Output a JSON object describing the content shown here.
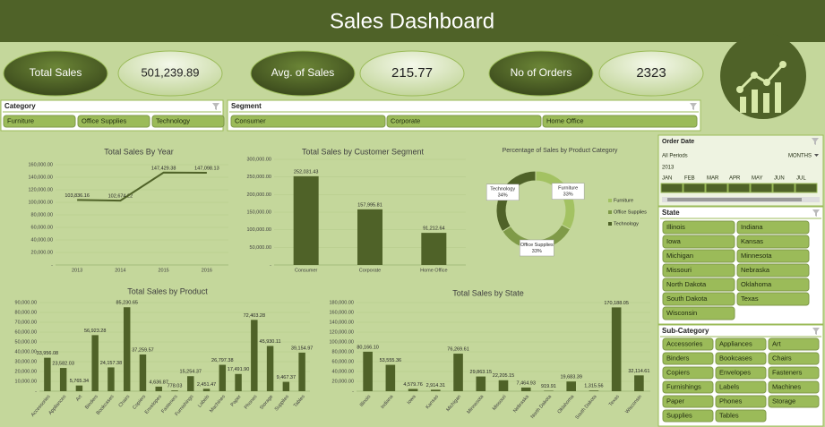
{
  "header": {
    "title": "Sales Dashboard"
  },
  "kpis": [
    {
      "label": "Total Sales",
      "value": "501,239.89"
    },
    {
      "label": "Avg. of Sales",
      "value": "215.77"
    },
    {
      "label": "No of Orders",
      "value": "2323"
    }
  ],
  "slicers": {
    "category": {
      "title": "Category",
      "items": [
        "Furniture",
        "Office Supplies",
        "Technology"
      ]
    },
    "segment": {
      "title": "Segment",
      "items": [
        "Consumer",
        "Corporate",
        "Home Office"
      ]
    },
    "order_date": {
      "title": "Order Date",
      "period": "All Periods",
      "unit": "MONTHS",
      "year": "2013",
      "months": [
        "JAN",
        "FEB",
        "MAR",
        "APR",
        "MAY",
        "JUN",
        "JUL"
      ]
    },
    "state": {
      "title": "State",
      "items": [
        "Illinois",
        "Indiana",
        "Iowa",
        "Kansas",
        "Michigan",
        "Minnesota",
        "Missouri",
        "Nebraska",
        "North Dakota",
        "Oklahoma",
        "South Dakota",
        "Texas",
        "Wisconsin"
      ]
    },
    "sub_category": {
      "title": "Sub-Category",
      "items": [
        "Accessories",
        "Appliances",
        "Art",
        "Binders",
        "Bookcases",
        "Chairs",
        "Copiers",
        "Envelopes",
        "Fasteners",
        "Furnishings",
        "Labels",
        "Machines",
        "Paper",
        "Phones",
        "Storage",
        "Supplies",
        "Tables"
      ]
    }
  },
  "chart_data": [
    {
      "type": "line",
      "title": "Total Sales By Year",
      "categories": [
        "2013",
        "2014",
        "2015",
        "2016"
      ],
      "values": [
        103836.16,
        102674.22,
        147429.38,
        147098.13
      ],
      "value_labels": [
        "103,836.16",
        "102,674.22",
        "147,429.38",
        "147,098.13"
      ],
      "color": "#4f6228",
      "grid": true,
      "ylim": [
        0,
        160000
      ],
      "yticks": [
        {
          "value": 0,
          "label": "-"
        },
        {
          "value": 20000,
          "label": "20,000.00"
        },
        {
          "value": 40000,
          "label": "40,000.00"
        },
        {
          "value": 60000,
          "label": "60,000.00"
        },
        {
          "value": 80000,
          "label": "80,000.00"
        },
        {
          "value": 100000,
          "label": "100,000.00"
        },
        {
          "value": 120000,
          "label": "120,000.00"
        },
        {
          "value": 140000,
          "label": "140,000.00"
        },
        {
          "value": 160000,
          "label": "160,000.00"
        }
      ]
    },
    {
      "type": "bar",
      "title": "Total Sales by Customer Segment",
      "categories": [
        "Consumer",
        "Corporate",
        "Home Office"
      ],
      "values": [
        252031.43,
        157995.81,
        91212.64
      ],
      "value_labels": [
        "252,031.43",
        "157,995.81",
        "91,212.64"
      ],
      "color": "#4f6228",
      "grid": true,
      "ylim": [
        0,
        300000
      ],
      "yticks": [
        {
          "value": 0,
          "label": "-"
        },
        {
          "value": 50000,
          "label": "50,000.00"
        },
        {
          "value": 100000,
          "label": "100,000.00"
        },
        {
          "value": 150000,
          "label": "150,000.00"
        },
        {
          "value": 200000,
          "label": "200,000.00"
        },
        {
          "value": 250000,
          "label": "250,000.00"
        },
        {
          "value": 300000,
          "label": "300,000.00"
        }
      ]
    },
    {
      "type": "pie",
      "title": "Percentage of Sales by Product Category",
      "categories": [
        "Furniture",
        "Office Supplies",
        "Technology"
      ],
      "values": [
        33,
        33,
        34
      ],
      "value_labels": [
        "33%",
        "33%",
        "34%"
      ],
      "colors": [
        "#a3c262",
        "#7f9a48",
        "#4f6228"
      ],
      "legend": "right"
    },
    {
      "type": "bar",
      "title": "Total Sales by Product",
      "categories": [
        "Accessories",
        "Appliances",
        "Art",
        "Binders",
        "Bookcases",
        "Chairs",
        "Copiers",
        "Envelopes",
        "Fasteners",
        "Furnishings",
        "Labels",
        "Machines",
        "Paper",
        "Phones",
        "Storage",
        "Supplies",
        "Tables"
      ],
      "values": [
        33956.08,
        23582.03,
        5765.34,
        56923.28,
        24157.38,
        85230.65,
        37259.57,
        4636.87,
        778.03,
        15254.37,
        2451.47,
        26797.38,
        17491.9,
        72403.28,
        45930.11,
        9467.37,
        39154.97
      ],
      "value_labels": [
        "33,956.08",
        "23,582.03",
        "5,765.34",
        "56,923.28",
        "24,157.38",
        "85,230.65",
        "37,259.57",
        "4,636.87",
        "778.03",
        "15,254.37",
        "2,451.47",
        "26,797.38",
        "17,491.90",
        "72,403.28",
        "45,930.11",
        "9,467.37",
        "39,154.97"
      ],
      "color": "#4f6228",
      "grid": true,
      "ylim": [
        0,
        90000
      ],
      "yticks": [
        {
          "value": 0,
          "label": "-"
        },
        {
          "value": 10000,
          "label": "10,000.00"
        },
        {
          "value": 20000,
          "label": "20,000.00"
        },
        {
          "value": 30000,
          "label": "30,000.00"
        },
        {
          "value": 40000,
          "label": "40,000.00"
        },
        {
          "value": 50000,
          "label": "50,000.00"
        },
        {
          "value": 60000,
          "label": "60,000.00"
        },
        {
          "value": 70000,
          "label": "70,000.00"
        },
        {
          "value": 80000,
          "label": "80,000.00"
        },
        {
          "value": 90000,
          "label": "90,000.00"
        }
      ]
    },
    {
      "type": "bar",
      "title": "Total Sales by State",
      "categories": [
        "Illinois",
        "Indiana",
        "Iowa",
        "Kansas",
        "Michigan",
        "Minnesota",
        "Missouri",
        "Nebraska",
        "North Dakota",
        "Oklahoma",
        "South Dakota",
        "Texas",
        "Wisconsin"
      ],
      "values": [
        80166.1,
        53555.36,
        4579.76,
        2914.31,
        76269.61,
        29863.15,
        22205.15,
        7464.93,
        919.91,
        19683.39,
        1315.56,
        170188.05,
        32114.61
      ],
      "value_labels": [
        "80,166.10",
        "53,555.36",
        "4,579.76",
        "2,914.31",
        "76,269.61",
        "29,863.15",
        "22,205.15",
        "7,464.93",
        "919.91",
        "19,683.39",
        "1,315.56",
        "170,188.05",
        "32,114.61"
      ],
      "color": "#4f6228",
      "grid": true,
      "ylim": [
        0,
        180000
      ],
      "yticks": [
        {
          "value": 0,
          "label": "-"
        },
        {
          "value": 20000,
          "label": "20,000.00"
        },
        {
          "value": 40000,
          "label": "40,000.00"
        },
        {
          "value": 60000,
          "label": "60,000.00"
        },
        {
          "value": 80000,
          "label": "80,000.00"
        },
        {
          "value": 100000,
          "label": "100,000.00"
        },
        {
          "value": 120000,
          "label": "120,000.00"
        },
        {
          "value": 140000,
          "label": "140,000.00"
        },
        {
          "value": 160000,
          "label": "160,000.00"
        },
        {
          "value": 180000,
          "label": "180,000.00"
        }
      ]
    }
  ]
}
